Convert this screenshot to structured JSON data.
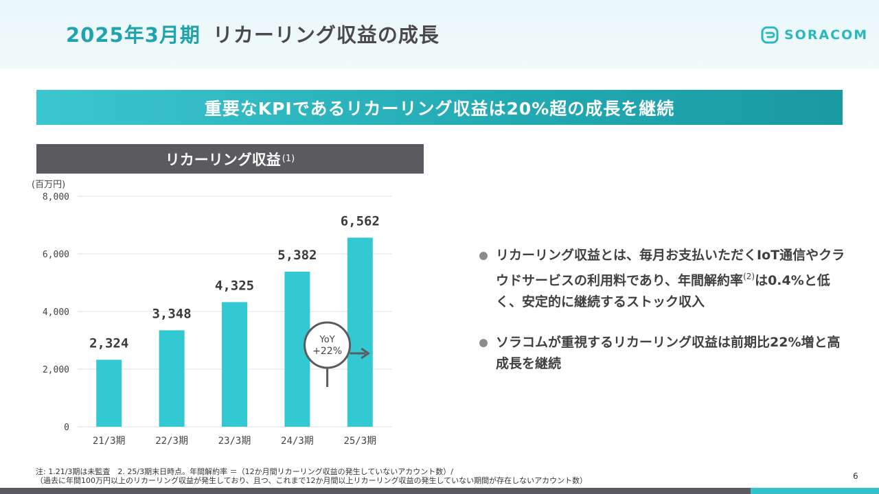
{
  "header": {
    "period": "2025年3月期",
    "title": "リカーリング収益の成長",
    "logo_text": "SORACOM"
  },
  "kpi_banner": "重要なKPIであるリカーリング収益は20%超の成長を継続",
  "chart_header": {
    "title": "リカーリング収益",
    "note": "(1)"
  },
  "chart_data": {
    "type": "bar",
    "unit_label": "(百万円)",
    "categories": [
      "21/3期",
      "22/3期",
      "23/3期",
      "24/3期",
      "25/3期"
    ],
    "values": [
      2324,
      3348,
      4325,
      5382,
      6562
    ],
    "value_labels": [
      "2,324",
      "3,348",
      "4,325",
      "5,382",
      "6,562"
    ],
    "ylim": [
      0,
      8000
    ],
    "yticks": [
      0,
      2000,
      4000,
      6000,
      8000
    ],
    "ytick_labels": [
      "0",
      "2,000",
      "4,000",
      "6,000",
      "8,000"
    ],
    "grid": true,
    "bar_color": "#33c9d3",
    "annotation": {
      "line1": "YoY",
      "line2": "+22%"
    }
  },
  "bullets": [
    {
      "text_before": "リカーリング収益とは、毎月お支払いただくIoT通信やクラウドサービスの利用料であり、年間解約率",
      "sup": "(2)",
      "text_after": "は0.4%と低く、安定的に継続するストック収入"
    },
    {
      "text_before": "ソラコムが重視するリカーリング収益は前期比22%増と高成長を継続",
      "sup": "",
      "text_after": ""
    }
  ],
  "footnote": {
    "line1": "注: 1.21/3期は未監査　2. 25/3期末日時点。年間解約率 ＝（12か月間リカーリング収益の発生していないアカウント数）/",
    "line2": "（過去に年間100万円以上のリカーリング収益が発生しており、且つ、これまで12か月間以上リカーリング収益の発生していない期間が存在しないアカウント数）"
  },
  "page_number": "6",
  "colors": {
    "accent": "#1fa3ad",
    "bar": "#33c9d3",
    "dark_band": "#5b5b5f"
  }
}
